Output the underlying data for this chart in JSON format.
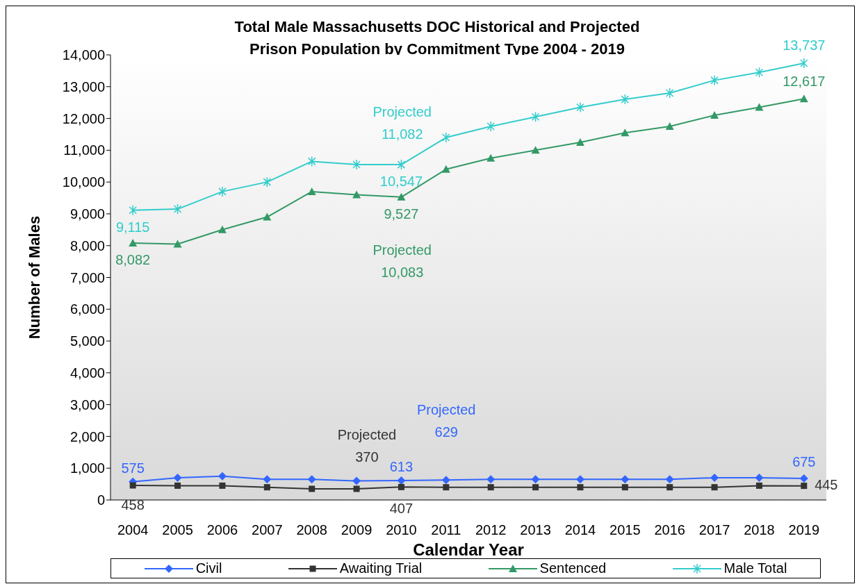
{
  "chart_data": {
    "type": "line",
    "title": "Total Male Massachusetts DOC Historical and Projected Prison Population by Commitment Type 2004 - 2019",
    "xlabel": "Calendar Year",
    "ylabel": "Number of Males",
    "categories": [
      "2004",
      "2005",
      "2006",
      "2007",
      "2008",
      "2009",
      "2010",
      "2011",
      "2012",
      "2013",
      "2014",
      "2015",
      "2016",
      "2017",
      "2018",
      "2019"
    ],
    "series": [
      {
        "name": "Civil",
        "color": "#3366ff",
        "marker": "diamond",
        "values": [
          575,
          700,
          750,
          650,
          650,
          600,
          613,
          629,
          650,
          650,
          650,
          650,
          650,
          700,
          700,
          675
        ],
        "value_labels": [
          "575",
          null,
          null,
          null,
          null,
          null,
          "613",
          null,
          null,
          null,
          null,
          null,
          null,
          null,
          null,
          "675"
        ]
      },
      {
        "name": "Awaiting Trial",
        "color": "#333333",
        "marker": "square",
        "values": [
          458,
          450,
          450,
          400,
          350,
          350,
          407,
          400,
          400,
          400,
          400,
          400,
          400,
          400,
          450,
          445
        ],
        "value_labels": [
          "458",
          null,
          null,
          null,
          null,
          null,
          "407",
          null,
          null,
          null,
          null,
          null,
          null,
          null,
          null,
          "445"
        ]
      },
      {
        "name": "Sentenced",
        "color": "#339966",
        "marker": "triangle",
        "values": [
          8082,
          8050,
          8500,
          8900,
          9700,
          9600,
          9527,
          10400,
          10750,
          11000,
          11250,
          11550,
          11750,
          12100,
          12350,
          12617
        ],
        "value_labels": [
          "8,082",
          null,
          null,
          null,
          null,
          null,
          "9,527",
          null,
          null,
          null,
          null,
          null,
          null,
          null,
          null,
          "12,617"
        ]
      },
      {
        "name": "Male Total",
        "color": "#33cccc",
        "marker": "cross",
        "values": [
          9115,
          9150,
          9700,
          10000,
          10650,
          10550,
          10547,
          11400,
          11750,
          12050,
          12350,
          12600,
          12800,
          13200,
          13450,
          13737
        ],
        "value_labels": [
          "9,115",
          null,
          null,
          null,
          null,
          null,
          "10,547",
          null,
          null,
          null,
          null,
          null,
          null,
          null,
          null,
          "13,737"
        ]
      }
    ],
    "annotations": [
      "Projected\n11,082",
      "Projected\n10,083",
      "Projected\n629",
      "Projected\n370"
    ],
    "ylim": [
      0,
      14000
    ],
    "yticks": [
      0,
      {
        "value": 1000,
        "label": "1,000"
      },
      {
        "value": 2000,
        "label": "2,000"
      },
      {
        "value": 3000,
        "label": "3,000"
      },
      {
        "value": 4000,
        "label": "4,000"
      },
      {
        "value": 5000,
        "label": "5,000"
      },
      {
        "value": 6000,
        "label": "6,000"
      },
      {
        "value": 7000,
        "label": "7,000"
      },
      {
        "value": 8000,
        "label": "8,000"
      },
      {
        "value": 9000,
        "label": "9,000"
      },
      {
        "value": 10000,
        "label": "10,000"
      },
      {
        "value": 11000,
        "label": "11,000"
      },
      {
        "value": 12000,
        "label": "12,000"
      },
      {
        "value": 13000,
        "label": "13,000"
      },
      {
        "value": 14000,
        "label": "14,000"
      }
    ],
    "grid": false,
    "legend": "bottom",
    "line_style": "solid"
  }
}
